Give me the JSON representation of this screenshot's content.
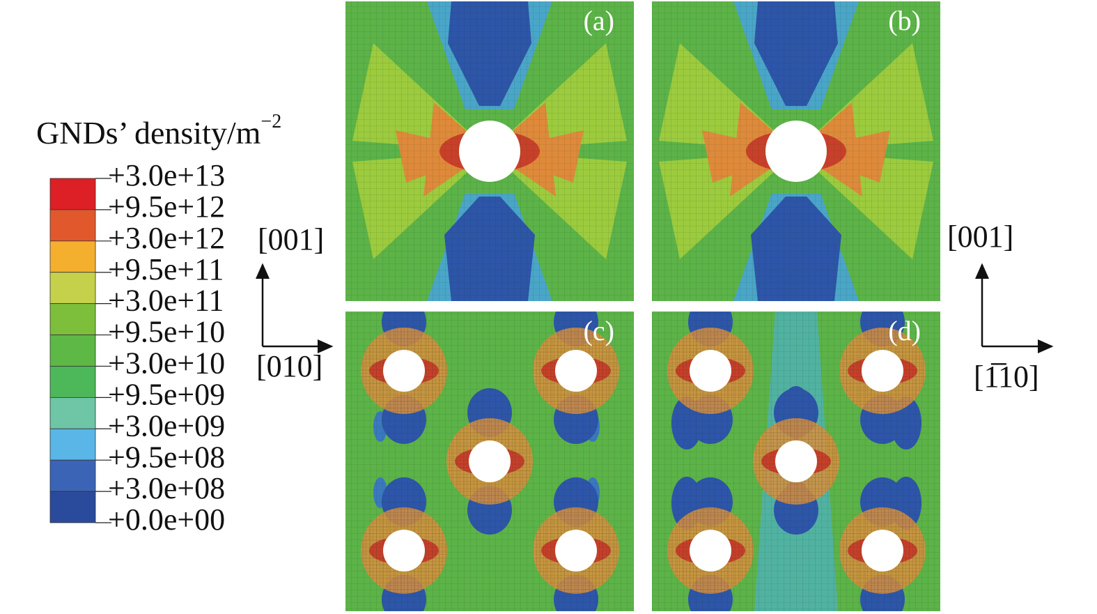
{
  "legend": {
    "title": "GNDs’ density/m",
    "title_superscript": "−2",
    "labels": [
      "+3.0e+13",
      "+9.5e+12",
      "+3.0e+12",
      "+9.5e+11",
      "+3.0e+11",
      "+9.5e+10",
      "+3.0e+10",
      "+9.5e+09",
      "+3.0e+09",
      "+9.5e+08",
      "+3.0e+08",
      "+0.0e+00"
    ],
    "colors": [
      "#dc2026",
      "#e1582c",
      "#f5af2f",
      "#c5d14b",
      "#7dbf3a",
      "#5db845",
      "#4db859",
      "#6ec6a6",
      "#5ab6e6",
      "#3b64b6",
      "#2a4a9b"
    ]
  },
  "panels": [
    {
      "label": "(a)"
    },
    {
      "label": "(b)"
    },
    {
      "label": "(c)"
    },
    {
      "label": "(d)"
    }
  ],
  "directions": {
    "left_vertical": "[001]",
    "left_horizontal": "[010]",
    "right_vertical": "[001]",
    "right_horizontal": "[1̅10]"
  }
}
